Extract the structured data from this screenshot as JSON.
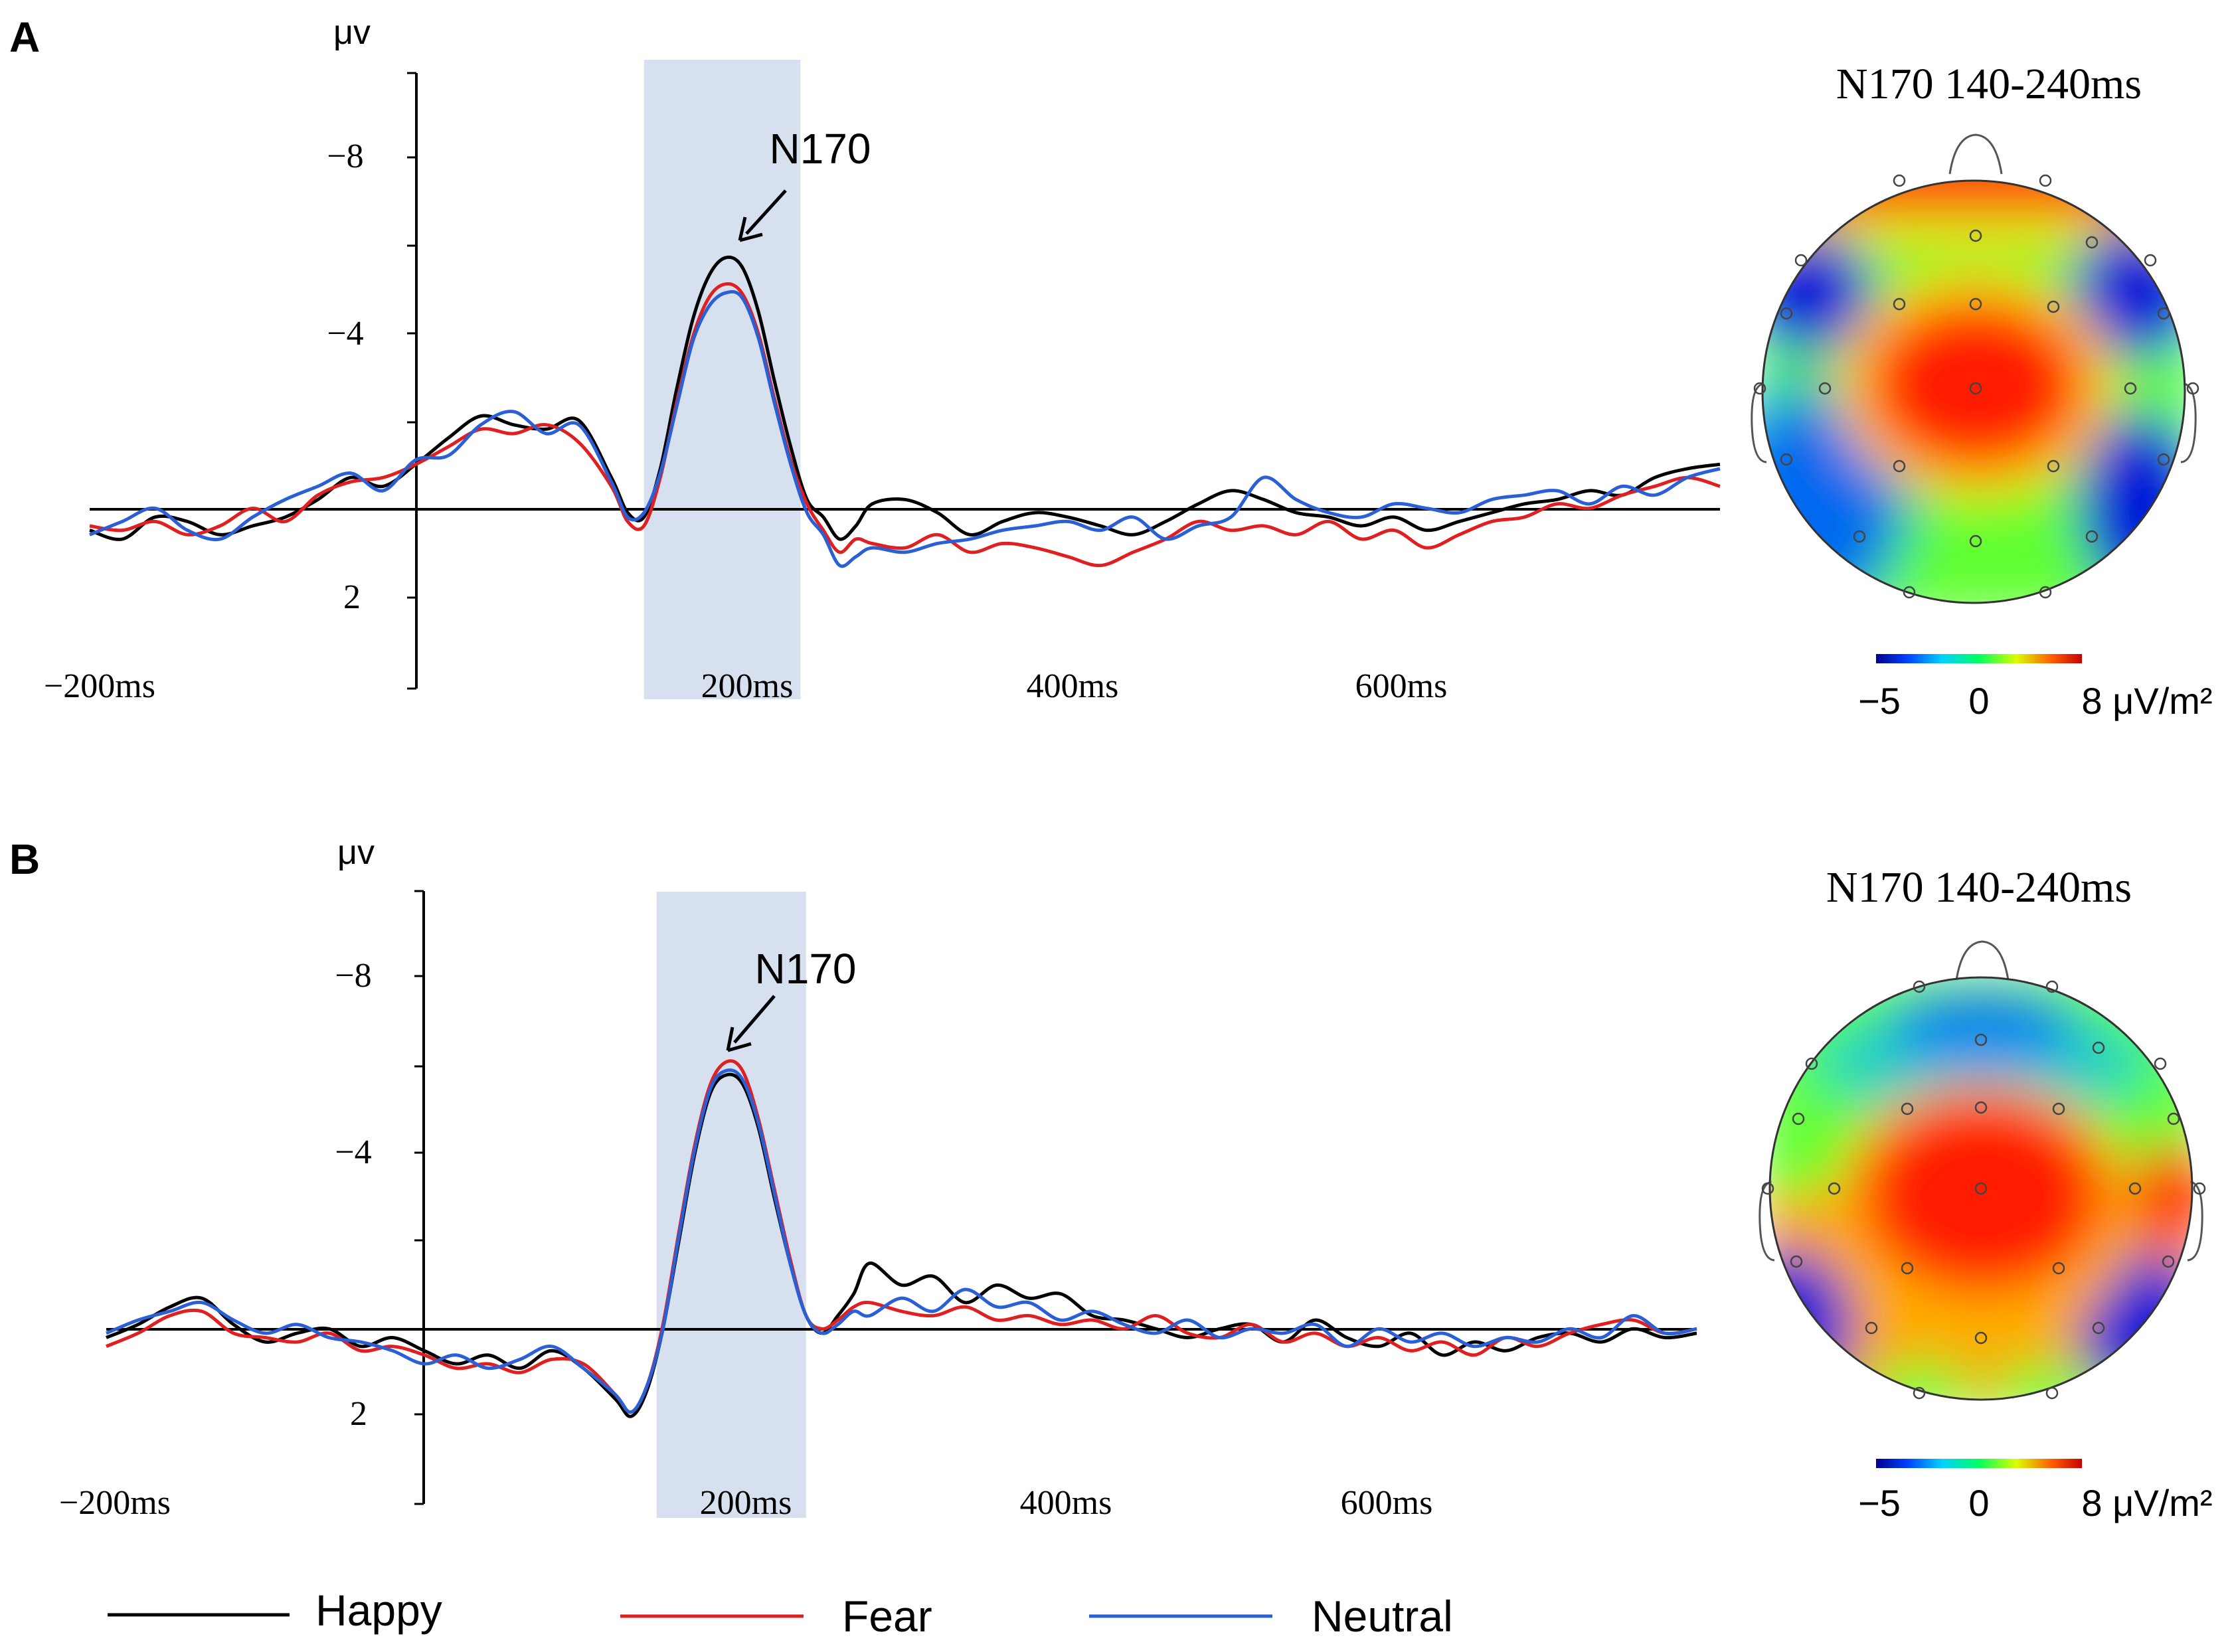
{
  "panels": [
    {
      "label": "A",
      "unit": "μv",
      "y_tick_labels": [
        "−8",
        "−4",
        "2"
      ],
      "x_tick_labels": [
        "−200ms",
        "200ms",
        "400ms",
        "600ms"
      ],
      "peak_label": "N170",
      "map": {
        "title": "N170 140-240ms"
      },
      "colorbar": {
        "labels": [
          "−5",
          "0",
          "8 μV/m²"
        ]
      }
    },
    {
      "label": "B",
      "unit": "μv",
      "y_tick_labels": [
        "−8",
        "−4",
        "2"
      ],
      "x_tick_labels": [
        "−200ms",
        "200ms",
        "400ms",
        "600ms"
      ],
      "peak_label": "N170",
      "map": {
        "title": "N170 140-240ms"
      },
      "colorbar": {
        "labels": [
          "−5",
          "0",
          "8 μV/m²"
        ]
      }
    }
  ],
  "legend": {
    "items": [
      {
        "label": "Happy",
        "color": "#000000"
      },
      {
        "label": "Fear",
        "color": "#e02020"
      },
      {
        "label": "Neutral",
        "color": "#2a5fd6"
      }
    ]
  },
  "chart_data": [
    {
      "type": "line",
      "panel": "A",
      "title": "",
      "xlabel": "",
      "ylabel": "μv",
      "y_inverted": true,
      "xlim": [
        -200,
        800
      ],
      "ylim": [
        -10,
        4
      ],
      "y_ticks": [
        -8,
        -4,
        2
      ],
      "x_ticks": [
        -200,
        200,
        400,
        600
      ],
      "highlight_window": [
        140,
        236
      ],
      "peak_annotation": {
        "text": "N170",
        "x": 190,
        "y": -5.8
      },
      "series": [
        {
          "name": "Happy",
          "color": "#000000",
          "x": [
            -200,
            -180,
            -160,
            -140,
            -120,
            -100,
            -80,
            -60,
            -40,
            -20,
            0,
            20,
            40,
            60,
            80,
            100,
            120,
            130,
            140,
            150,
            160,
            170,
            180,
            190,
            200,
            210,
            220,
            230,
            240,
            250,
            260,
            270,
            280,
            300,
            320,
            340,
            360,
            380,
            400,
            420,
            440,
            460,
            480,
            500,
            520,
            540,
            560,
            580,
            600,
            620,
            640,
            660,
            680,
            700,
            720,
            740,
            760,
            780,
            800
          ],
          "y": [
            0.4,
            0.6,
            0.1,
            0.2,
            0.5,
            0.3,
            0.1,
            -0.3,
            -0.8,
            -0.6,
            -1.1,
            -1.7,
            -2.2,
            -2.0,
            -1.9,
            -2.1,
            -0.8,
            0.0,
            0.1,
            -1.0,
            -2.8,
            -4.4,
            -5.4,
            -5.8,
            -5.6,
            -4.6,
            -3.0,
            -1.5,
            -0.3,
            0.1,
            0.6,
            0.3,
            -0.2,
            -0.3,
            0.0,
            0.5,
            0.2,
            0.0,
            0.1,
            0.3,
            0.5,
            0.2,
            -0.2,
            -0.5,
            -0.3,
            0.0,
            0.1,
            0.3,
            0.1,
            0.4,
            0.2,
            0.0,
            -0.2,
            -0.3,
            -0.5,
            -0.4,
            -0.8,
            -1.0,
            -1.1
          ]
        },
        {
          "name": "Fear",
          "color": "#e02020",
          "x": [
            -200,
            -180,
            -160,
            -140,
            -120,
            -100,
            -80,
            -60,
            -40,
            -20,
            0,
            20,
            40,
            60,
            80,
            100,
            120,
            130,
            140,
            150,
            160,
            170,
            180,
            190,
            200,
            210,
            220,
            230,
            240,
            250,
            260,
            270,
            280,
            300,
            320,
            340,
            360,
            380,
            400,
            420,
            440,
            460,
            480,
            500,
            520,
            540,
            560,
            580,
            600,
            620,
            640,
            660,
            680,
            700,
            720,
            740,
            760,
            780,
            800
          ],
          "y": [
            0.3,
            0.4,
            0.2,
            0.5,
            0.3,
            -0.1,
            0.2,
            -0.4,
            -0.7,
            -0.8,
            -1.1,
            -1.5,
            -1.9,
            -1.8,
            -2.0,
            -1.6,
            -0.6,
            0.2,
            0.3,
            -0.8,
            -2.5,
            -4.0,
            -4.9,
            -5.2,
            -5.0,
            -4.1,
            -2.6,
            -1.2,
            -0.2,
            0.4,
            0.9,
            0.6,
            0.7,
            0.8,
            0.5,
            0.9,
            0.7,
            0.8,
            1.0,
            1.2,
            0.9,
            0.6,
            0.2,
            0.4,
            0.3,
            0.5,
            0.2,
            0.6,
            0.4,
            0.8,
            0.5,
            0.2,
            0.1,
            -0.2,
            -0.1,
            -0.4,
            -0.6,
            -0.8,
            -0.6
          ]
        },
        {
          "name": "Neutral",
          "color": "#2a5fd6",
          "x": [
            -200,
            -180,
            -160,
            -140,
            -120,
            -100,
            -80,
            -60,
            -40,
            -20,
            0,
            20,
            40,
            60,
            80,
            100,
            120,
            130,
            140,
            150,
            160,
            170,
            180,
            190,
            200,
            210,
            220,
            230,
            240,
            250,
            260,
            270,
            280,
            300,
            320,
            340,
            360,
            380,
            400,
            420,
            440,
            460,
            480,
            500,
            520,
            540,
            560,
            580,
            600,
            620,
            640,
            660,
            680,
            700,
            720,
            740,
            760,
            780,
            800
          ],
          "y": [
            0.5,
            0.2,
            -0.1,
            0.4,
            0.6,
            0.1,
            -0.3,
            -0.6,
            -0.9,
            -0.5,
            -1.2,
            -1.3,
            -2.0,
            -2.3,
            -1.8,
            -2.0,
            -0.7,
            0.1,
            0.0,
            -0.9,
            -2.4,
            -3.9,
            -4.7,
            -5.0,
            -4.9,
            -4.0,
            -2.5,
            -1.1,
            0.0,
            0.5,
            1.2,
            1.0,
            0.8,
            0.9,
            0.7,
            0.6,
            0.4,
            0.3,
            0.2,
            0.4,
            0.1,
            0.6,
            0.3,
            0.1,
            -0.8,
            -0.3,
            0.0,
            0.1,
            -0.2,
            -0.1,
            0.0,
            -0.3,
            -0.4,
            -0.5,
            -0.2,
            -0.6,
            -0.4,
            -0.8,
            -1.0
          ]
        }
      ]
    },
    {
      "type": "line",
      "panel": "B",
      "title": "",
      "xlabel": "",
      "ylabel": "μv",
      "y_inverted": true,
      "xlim": [
        -200,
        800
      ],
      "ylim": [
        -10,
        4
      ],
      "y_ticks": [
        -8,
        -4,
        2
      ],
      "x_ticks": [
        -200,
        200,
        400,
        600
      ],
      "highlight_window": [
        146,
        240
      ],
      "peak_annotation": {
        "text": "N170",
        "x": 190,
        "y": -6.0
      },
      "series": [
        {
          "name": "Happy",
          "color": "#000000",
          "x": [
            -200,
            -180,
            -160,
            -140,
            -120,
            -100,
            -80,
            -60,
            -40,
            -20,
            0,
            20,
            40,
            60,
            80,
            100,
            120,
            130,
            140,
            150,
            160,
            170,
            180,
            190,
            200,
            210,
            220,
            230,
            240,
            250,
            260,
            270,
            280,
            300,
            320,
            340,
            360,
            380,
            400,
            420,
            440,
            460,
            480,
            500,
            520,
            540,
            560,
            580,
            600,
            620,
            640,
            660,
            680,
            700,
            720,
            740,
            760,
            780,
            800
          ],
          "y": [
            0.2,
            -0.1,
            -0.5,
            -0.7,
            -0.1,
            0.3,
            0.1,
            0.0,
            0.4,
            0.2,
            0.5,
            0.8,
            0.6,
            0.9,
            0.5,
            0.9,
            1.6,
            2.0,
            1.4,
            0.0,
            -2.0,
            -4.0,
            -5.4,
            -5.8,
            -5.6,
            -4.6,
            -3.0,
            -1.5,
            -0.3,
            0.1,
            -0.3,
            -0.8,
            -1.5,
            -1.0,
            -1.2,
            -0.6,
            -1.0,
            -0.7,
            -0.8,
            -0.3,
            -0.2,
            0.0,
            0.2,
            0.0,
            -0.1,
            0.3,
            -0.2,
            0.2,
            0.4,
            0.1,
            0.6,
            0.3,
            0.5,
            0.2,
            0.1,
            0.3,
            0.0,
            0.2,
            0.1
          ]
        },
        {
          "name": "Fear",
          "color": "#e02020",
          "x": [
            -200,
            -180,
            -160,
            -140,
            -120,
            -100,
            -80,
            -60,
            -40,
            -20,
            0,
            20,
            40,
            60,
            80,
            100,
            120,
            130,
            140,
            150,
            160,
            170,
            180,
            190,
            200,
            210,
            220,
            230,
            240,
            250,
            260,
            270,
            280,
            300,
            320,
            340,
            360,
            380,
            400,
            420,
            440,
            460,
            480,
            500,
            520,
            540,
            560,
            580,
            600,
            620,
            640,
            660,
            680,
            700,
            720,
            740,
            760,
            780,
            800
          ],
          "y": [
            0.4,
            0.1,
            -0.3,
            -0.4,
            0.1,
            0.2,
            0.3,
            0.1,
            0.5,
            0.4,
            0.6,
            0.9,
            0.8,
            1.0,
            0.7,
            0.8,
            1.5,
            1.9,
            1.3,
            -0.1,
            -2.2,
            -4.2,
            -5.6,
            -6.1,
            -5.9,
            -4.8,
            -3.2,
            -1.6,
            -0.3,
            0.0,
            -0.2,
            -0.5,
            -0.6,
            -0.4,
            -0.3,
            -0.5,
            -0.2,
            -0.3,
            -0.1,
            -0.2,
            0.0,
            -0.3,
            0.1,
            0.2,
            -0.1,
            0.3,
            0.1,
            0.4,
            0.2,
            0.5,
            0.3,
            0.6,
            0.2,
            0.4,
            0.1,
            -0.1,
            -0.2,
            0.1,
            0.0
          ]
        },
        {
          "name": "Neutral",
          "color": "#2a5fd6",
          "x": [
            -200,
            -180,
            -160,
            -140,
            -120,
            -100,
            -80,
            -60,
            -40,
            -20,
            0,
            20,
            40,
            60,
            80,
            100,
            120,
            130,
            140,
            150,
            160,
            170,
            180,
            190,
            200,
            210,
            220,
            230,
            240,
            250,
            260,
            270,
            280,
            300,
            320,
            340,
            360,
            380,
            400,
            420,
            440,
            460,
            480,
            500,
            520,
            540,
            560,
            580,
            600,
            620,
            640,
            660,
            680,
            700,
            720,
            740,
            760,
            780,
            800
          ],
          "y": [
            0.1,
            -0.2,
            -0.4,
            -0.6,
            -0.2,
            0.1,
            -0.1,
            0.2,
            0.3,
            0.5,
            0.8,
            0.6,
            0.9,
            0.7,
            0.4,
            0.9,
            1.5,
            1.9,
            1.3,
            0.0,
            -2.1,
            -4.1,
            -5.5,
            -5.9,
            -5.7,
            -4.7,
            -3.1,
            -1.5,
            -0.3,
            0.1,
            -0.1,
            -0.4,
            -0.3,
            -0.7,
            -0.4,
            -0.9,
            -0.5,
            -0.6,
            -0.2,
            -0.4,
            -0.1,
            0.1,
            -0.2,
            0.2,
            0.0,
            0.1,
            -0.1,
            0.4,
            0.0,
            0.3,
            0.1,
            0.4,
            0.2,
            0.3,
            0.0,
            0.2,
            -0.3,
            0.1,
            0.0
          ]
        }
      ]
    }
  ]
}
